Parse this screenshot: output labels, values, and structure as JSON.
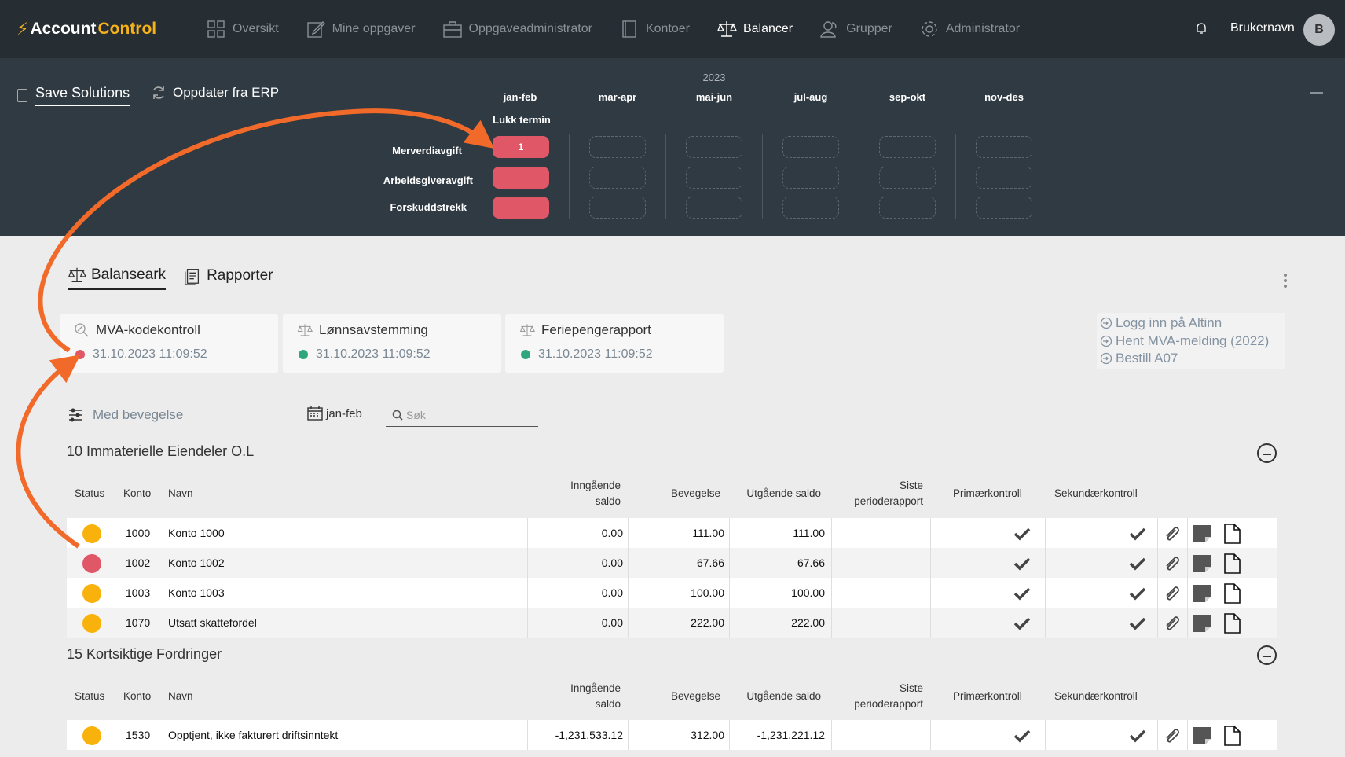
{
  "app": {
    "logo_part1": "Account",
    "logo_part2": "Control"
  },
  "nav": {
    "items": [
      {
        "label": "Oversikt",
        "icon": "grid-icon"
      },
      {
        "label": "Mine oppgaver",
        "icon": "edit-icon"
      },
      {
        "label": "Oppgaveadministrator",
        "icon": "briefcase-icon"
      },
      {
        "label": "Kontoer",
        "icon": "book-icon"
      },
      {
        "label": "Balancer",
        "icon": "scale-icon",
        "active": true
      },
      {
        "label": "Grupper",
        "icon": "users-icon"
      },
      {
        "label": "Administrator",
        "icon": "gear-icon"
      }
    ],
    "username": "Brukernavn",
    "avatar_initial": "B"
  },
  "panel": {
    "save_label": "Save Solutions",
    "erp_label": "Oppdater fra ERP",
    "year": "2023",
    "months": [
      "jan-feb",
      "mar-apr",
      "mai-jun",
      "jul-aug",
      "sep-okt",
      "nov-des"
    ],
    "lukk_termin": "Lukk termin",
    "rows": [
      {
        "label": "Merverdiavgift",
        "first_value": "1"
      },
      {
        "label": "Arbeidsgiveravgift",
        "first_value": ""
      },
      {
        "label": "Forskuddstrekk",
        "first_value": ""
      }
    ]
  },
  "tabs": [
    {
      "label": "Balanseark",
      "icon": "scale-icon",
      "active": true
    },
    {
      "label": "Rapporter",
      "icon": "report-icon"
    }
  ],
  "cards": [
    {
      "title": "MVA-kodekontroll",
      "date": "31.10.2023 11:09:52",
      "status_color": "#e05767",
      "icon": "search-percent-icon"
    },
    {
      "title": "Lønnsavstemming",
      "date": "31.10.2023 11:09:52",
      "status_color": "#2fa77e",
      "icon": "scale-icon"
    },
    {
      "title": "Feriepengerapport",
      "date": "31.10.2023 11:09:52",
      "status_color": "#2fa77e",
      "icon": "scale-icon"
    }
  ],
  "links": [
    "Logg inn på Altinn",
    "Hent MVA-melding (2022)",
    "Bestill A07"
  ],
  "filters": {
    "movement_label": "Med bevegelse",
    "period": "jan-feb",
    "search_placeholder": "Søk"
  },
  "table_headers": {
    "status": "Status",
    "konto": "Konto",
    "navn": "Navn",
    "inngaende_1": "Inngående",
    "inngaende_2": "saldo",
    "bevegelse": "Bevegelse",
    "utgaende": "Utgående saldo",
    "siste_1": "Siste",
    "siste_2": "perioderapport",
    "primaer": "Primærkontroll",
    "sekundaer": "Sekundærkontroll"
  },
  "sections": [
    {
      "title": "10 Immaterielle Eiendeler O.L",
      "rows": [
        {
          "status_color": "#f9b10c",
          "konto": "1000",
          "navn": "Konto 1000",
          "inngaende": "0.00",
          "bevegelse": "111.00",
          "utgaende": "111.00"
        },
        {
          "status_color": "#e05767",
          "konto": "1002",
          "navn": "Konto 1002",
          "inngaende": "0.00",
          "bevegelse": "67.66",
          "utgaende": "67.66"
        },
        {
          "status_color": "#f9b10c",
          "konto": "1003",
          "navn": "Konto 1003",
          "inngaende": "0.00",
          "bevegelse": "100.00",
          "utgaende": "100.00"
        },
        {
          "status_color": "#f9b10c",
          "konto": "1070",
          "navn": "Utsatt skattefordel",
          "inngaende": "0.00",
          "bevegelse": "222.00",
          "utgaende": "222.00"
        }
      ]
    },
    {
      "title": "15 Kortsiktige Fordringer",
      "rows": [
        {
          "status_color": "#f9b10c",
          "konto": "1530",
          "navn": "Opptjent, ikke fakturert driftsinntekt",
          "inngaende": "-1,231,533.12",
          "bevegelse": "312.00",
          "utgaende": "-1,231,221.12"
        }
      ]
    }
  ],
  "colors": {
    "nav_bg": "#262d33",
    "panel_bg": "#2f3a43",
    "accent": "#f5b21b",
    "danger": "#e05767",
    "ok": "#2fa77e",
    "warning": "#f9b10c",
    "annotation_arrow": "#f26a2a"
  }
}
